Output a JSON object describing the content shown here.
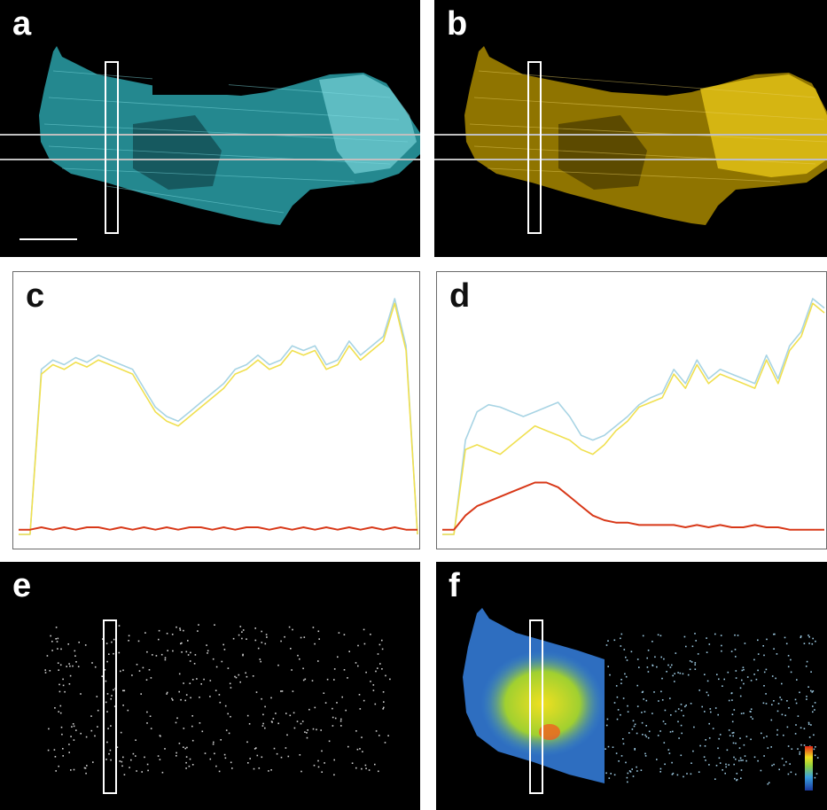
{
  "panels": {
    "a": {
      "label": "a",
      "stain_color": "#55c8d0"
    },
    "b": {
      "label": "b",
      "stain_color": "#e6c818"
    },
    "c": {
      "label": "c"
    },
    "d": {
      "label": "d"
    },
    "e": {
      "label": "e"
    },
    "f": {
      "label": "f"
    }
  },
  "colors": {
    "cyan_trace": "#a8d4e4",
    "yellow_trace": "#f0e050",
    "red_trace": "#d83818",
    "frame": "#ffffff"
  },
  "chart_data": [
    {
      "panel": "c",
      "type": "line",
      "title": "",
      "xlabel": "",
      "ylabel": "",
      "series": [
        {
          "values": [
            0,
            0,
            70,
            74,
            72,
            75,
            73,
            76,
            74,
            72,
            70,
            62,
            54,
            50,
            48,
            52,
            56,
            60,
            64,
            70,
            72,
            76,
            72,
            74,
            80,
            78,
            80,
            72,
            74,
            82,
            76,
            80,
            84,
            100,
            80,
            0
          ]
        },
        {
          "values": [
            0,
            0,
            68,
            72,
            70,
            73,
            71,
            74,
            72,
            70,
            68,
            60,
            52,
            48,
            46,
            50,
            54,
            58,
            62,
            68,
            70,
            74,
            70,
            72,
            78,
            76,
            78,
            70,
            72,
            80,
            74,
            78,
            82,
            98,
            78,
            0
          ]
        },
        {
          "values": [
            2,
            2,
            3,
            2,
            3,
            2,
            3,
            3,
            2,
            3,
            2,
            3,
            2,
            3,
            2,
            3,
            3,
            2,
            3,
            2,
            3,
            3,
            2,
            3,
            2,
            3,
            2,
            3,
            2,
            3,
            2,
            3,
            2,
            3,
            2,
            2
          ]
        }
      ]
    },
    {
      "panel": "d",
      "type": "line",
      "title": "",
      "xlabel": "",
      "ylabel": "",
      "series": [
        {
          "values": [
            0,
            0,
            40,
            52,
            55,
            54,
            52,
            50,
            52,
            54,
            56,
            50,
            42,
            40,
            42,
            46,
            50,
            55,
            58,
            60,
            70,
            64,
            74,
            66,
            70,
            68,
            66,
            64,
            76,
            66,
            80,
            86,
            100,
            96
          ]
        },
        {
          "values": [
            0,
            0,
            36,
            38,
            36,
            34,
            38,
            42,
            46,
            44,
            42,
            40,
            36,
            34,
            38,
            44,
            48,
            54,
            56,
            58,
            68,
            62,
            72,
            64,
            68,
            66,
            64,
            62,
            74,
            64,
            78,
            84,
            98,
            94
          ]
        },
        {
          "values": [
            2,
            2,
            8,
            12,
            14,
            16,
            18,
            20,
            22,
            22,
            20,
            16,
            12,
            8,
            6,
            5,
            5,
            4,
            4,
            4,
            4,
            3,
            4,
            3,
            4,
            3,
            3,
            4,
            3,
            3,
            2,
            2,
            2,
            2
          ]
        }
      ]
    }
  ]
}
